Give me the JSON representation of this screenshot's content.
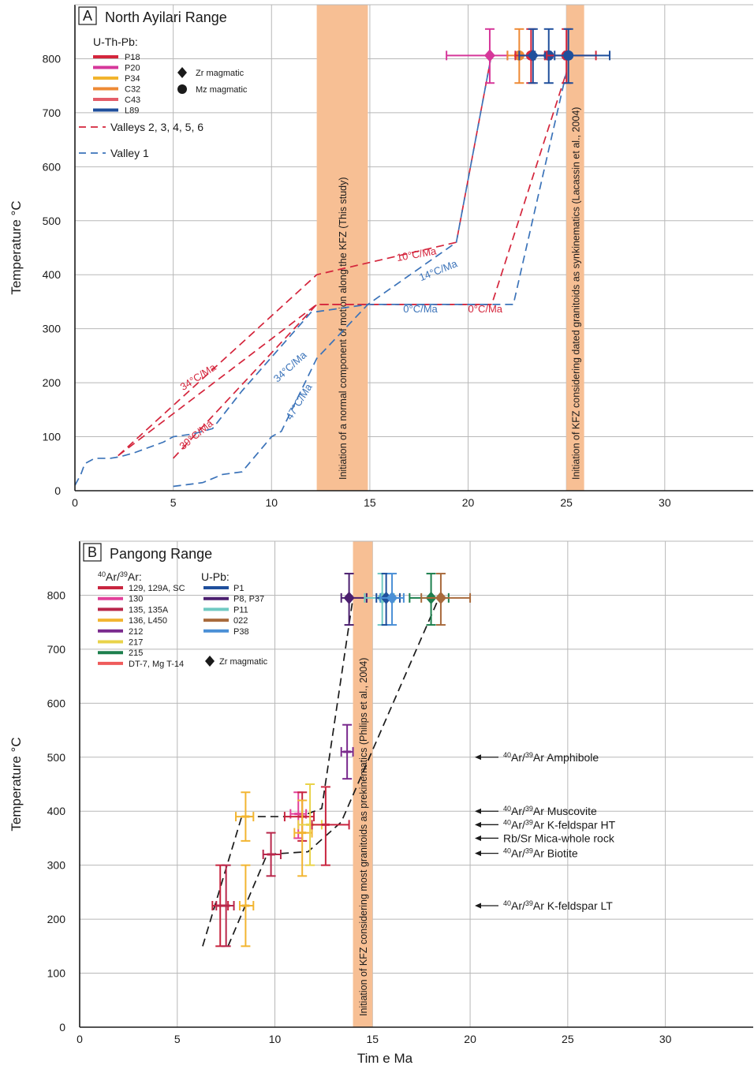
{
  "colors": {
    "frame": "#1a1a1a",
    "grid": "#b8b8b8",
    "band": "#f7bf94",
    "red_dash": "#d4253c",
    "blue_dash": "#3b73b9",
    "black_dash": "#1a1a1a",
    "arrow": "#1a1a1a"
  },
  "chart_data": [
    {
      "type": "line",
      "panel_letter": "A",
      "title": "North Ayilari Range",
      "ylabel": "Temperature °C",
      "xlabel": "",
      "xlim": [
        0,
        34.5
      ],
      "ylim": [
        0,
        900
      ],
      "xticks": [
        0,
        5,
        10,
        15,
        20,
        25,
        30
      ],
      "yticks": [
        0,
        100,
        200,
        300,
        400,
        500,
        600,
        700,
        800
      ],
      "grid": true,
      "legend_position": "top-left",
      "legend_heading": "U-Th-Pb:",
      "legend_samples": [
        {
          "label": "P18",
          "color": "#d4253c"
        },
        {
          "label": "P20",
          "color": "#d6379a"
        },
        {
          "label": "P34",
          "color": "#f2b42e"
        },
        {
          "label": "C32",
          "color": "#ee8a35"
        },
        {
          "label": "C43",
          "color": "#e45d69"
        },
        {
          "label": "L89",
          "color": "#1f4f9c"
        }
      ],
      "legend_markers": [
        {
          "label": "Zr magmatic",
          "shape": "diamond"
        },
        {
          "label": "Mz magmatic",
          "shape": "circle"
        }
      ],
      "legend_lines": [
        {
          "label": "Valleys 2, 3, 4, 5, 6",
          "color": "#d4253c"
        },
        {
          "label": "Valley 1",
          "color": "#3b73b9"
        }
      ],
      "bands": [
        {
          "x0": 12.3,
          "x1": 14.9,
          "label": "Initiation of a normal component of motion along the KFZ (This study)"
        },
        {
          "x0": 25.0,
          "x1": 25.9,
          "label": "Initiation of KFZ considering dated granitoids as synkinematics (Lacassin et al., 2004)"
        }
      ],
      "series": [
        {
          "name": "Valleys 2, 3, 4, 5, 6",
          "style": "red_dash",
          "x": [
            2.2,
            12.3,
            21.2,
            25.0
          ],
          "y": [
            65,
            345,
            345,
            775
          ]
        },
        {
          "name": "Valleys 2, 3, 4, 5, 6",
          "style": "red_dash",
          "x": [
            2.2,
            12.3,
            19.4,
            21.2
          ],
          "y": [
            65,
            400,
            460,
            810
          ]
        },
        {
          "name": "Valleys 2, 3, 4, 5, 6",
          "style": "red_dash",
          "x": [
            5.0,
            12.3,
            14.9,
            21.2
          ],
          "y": [
            60,
            345,
            345,
            345
          ]
        },
        {
          "name": "Valley 1",
          "style": "blue_dash",
          "x": [
            0.0,
            0.3,
            0.5,
            1.0,
            1.8,
            2.3,
            3.0,
            4.5,
            5.0,
            6.0,
            7.0,
            8.5,
            12.0,
            14.9,
            22.3,
            25.0
          ],
          "y": [
            10,
            30,
            50,
            60,
            60,
            63,
            70,
            90,
            100,
            105,
            115,
            185,
            330,
            345,
            345,
            775
          ]
        },
        {
          "name": "Valley 1",
          "style": "blue_dash",
          "x": [
            5.0,
            6.5,
            7.5,
            8.5,
            10.0,
            10.5,
            12.3,
            14.9,
            19.4,
            21.2
          ],
          "y": [
            8,
            15,
            30,
            35,
            100,
            110,
            245,
            345,
            460,
            810
          ]
        }
      ],
      "points": [
        {
          "x": 21.1,
          "y": 806,
          "xerr": [
            18.9,
            22.0
          ],
          "yerr": [
            755,
            855
          ],
          "color": "#d6379a",
          "shape": "diamond"
        },
        {
          "x": 22.6,
          "y": 806,
          "xerr": [
            22.0,
            23.2
          ],
          "yerr": [
            755,
            855
          ],
          "color": "#ee8a35",
          "shape": "circle"
        },
        {
          "x": 23.2,
          "y": 806,
          "xerr": [
            22.4,
            23.9
          ],
          "yerr": [
            755,
            855
          ],
          "color": "#d4253c",
          "shape": "circle"
        },
        {
          "x": 23.3,
          "y": 806,
          "xerr": [
            22.6,
            24.2
          ],
          "yerr": [
            755,
            855
          ],
          "color": "#1f4f9c",
          "shape": "diamond"
        },
        {
          "x": 24.1,
          "y": 806,
          "xerr": [
            23.4,
            24.9
          ],
          "yerr": [
            755,
            855
          ],
          "color": "#1f4f9c",
          "shape": "circle"
        },
        {
          "x": 25.0,
          "y": 806,
          "xerr": [
            24.0,
            26.5
          ],
          "yerr": [
            755,
            855
          ],
          "color": "#d4253c",
          "shape": "circle"
        },
        {
          "x": 25.1,
          "y": 806,
          "xerr": [
            24.4,
            27.2
          ],
          "yerr": [
            755,
            855
          ],
          "color": "#1f4f9c",
          "shape": "circle"
        }
      ],
      "annotations": [
        {
          "text": "10°C/Ma",
          "x": 16.4,
          "y": 425,
          "angle": -10,
          "color": "#d4253c"
        },
        {
          "text": "14°C/Ma",
          "x": 17.6,
          "y": 388,
          "angle": -22,
          "color": "#3b73b9"
        },
        {
          "text": "0°C/Ma",
          "x": 16.7,
          "y": 330,
          "angle": 0,
          "color": "#3b73b9"
        },
        {
          "text": "0°C/Ma",
          "x": 20.0,
          "y": 330,
          "angle": 0,
          "color": "#d4253c"
        },
        {
          "text": "34°C/Ma",
          "x": 5.5,
          "y": 185,
          "angle": -33,
          "color": "#d4253c"
        },
        {
          "text": "34°C/Ma",
          "x": 10.3,
          "y": 200,
          "angle": -42,
          "color": "#3b73b9"
        },
        {
          "text": "39°C/Ma",
          "x": 5.5,
          "y": 75,
          "angle": -40,
          "color": "#d4253c"
        },
        {
          "text": "47°C/Ma",
          "x": 11.0,
          "y": 130,
          "angle": -58,
          "color": "#3b73b9"
        }
      ]
    },
    {
      "type": "line",
      "panel_letter": "B",
      "title": "Pangong Range",
      "ylabel": "Temperature °C",
      "xlabel": "Tim e Ma",
      "xlim": [
        0,
        34.5
      ],
      "ylim": [
        0,
        900
      ],
      "xticks": [
        0,
        5,
        10,
        15,
        20,
        25,
        30
      ],
      "yticks": [
        0,
        100,
        200,
        300,
        400,
        500,
        600,
        700,
        800
      ],
      "grid": true,
      "legend_position": "top-left",
      "legend_heading_arar": "40Ar/39Ar:",
      "legend_arar": [
        {
          "label": "129, 129A, SC",
          "color": "#c8253f"
        },
        {
          "label": "130",
          "color": "#e2409a"
        },
        {
          "label": "135, 135A",
          "color": "#b8264a"
        },
        {
          "label": "136, L450",
          "color": "#f2b531"
        },
        {
          "label": "212",
          "color": "#7a2a8d"
        },
        {
          "label": "217",
          "color": "#e9d34a"
        },
        {
          "label": "215",
          "color": "#1c7f4d"
        },
        {
          "label": "DT-7, Mg T-14",
          "color": "#ef5b5b"
        }
      ],
      "legend_heading_upb": "U-Pb:",
      "legend_upb": [
        {
          "label": "P1",
          "color": "#1f4f9c"
        },
        {
          "label": "P8, P37",
          "color": "#4b1f6f"
        },
        {
          "label": "P11",
          "color": "#6fc9c2"
        },
        {
          "label": "022",
          "color": "#a86a3c"
        },
        {
          "label": "P38",
          "color": "#4a8fd6"
        }
      ],
      "legend_markers": [
        {
          "label": "Zr magmatic",
          "shape": "diamond"
        }
      ],
      "bands": [
        {
          "x0": 14.0,
          "x1": 15.0,
          "label": "Initiation of KFZ considering most granitoids as prekinematics (Philips et al., 2004)"
        }
      ],
      "series": [
        {
          "style": "black_dash",
          "x": [
            6.3,
            8.3,
            11.3,
            12.4,
            14.0
          ],
          "y": [
            150,
            390,
            390,
            405,
            795
          ]
        },
        {
          "style": "black_dash",
          "x": [
            7.6,
            9.6,
            11.7,
            13.4,
            18.4
          ],
          "y": [
            150,
            320,
            325,
            380,
            795
          ]
        }
      ],
      "points": [
        {
          "x": 13.8,
          "y": 795,
          "xerr": [
            13.4,
            14.7
          ],
          "yerr": [
            745,
            840
          ],
          "color": "#4b1f6f",
          "shape": "diamond"
        },
        {
          "x": 15.5,
          "y": 795,
          "xerr": [
            14.6,
            16.1
          ],
          "yerr": [
            745,
            840
          ],
          "color": "#6fc9c2",
          "shape": "diamond"
        },
        {
          "x": 15.7,
          "y": 795,
          "xerr": [
            15.2,
            16.4
          ],
          "yerr": [
            745,
            840
          ],
          "color": "#1f4f9c",
          "shape": "diamond"
        },
        {
          "x": 16.0,
          "y": 795,
          "xerr": [
            15.4,
            16.6
          ],
          "yerr": [
            745,
            840
          ],
          "color": "#4a8fd6",
          "shape": "diamond"
        },
        {
          "x": 18.0,
          "y": 795,
          "xerr": [
            16.9,
            18.9
          ],
          "yerr": [
            745,
            840
          ],
          "color": "#1c7f4d",
          "shape": "diamond"
        },
        {
          "x": 18.5,
          "y": 795,
          "xerr": [
            17.5,
            20.0
          ],
          "yerr": [
            745,
            840
          ],
          "color": "#a86a3c",
          "shape": "diamond"
        },
        {
          "x": 13.7,
          "y": 510,
          "xerr": [
            13.4,
            14.0
          ],
          "yerr": [
            460,
            560
          ],
          "color": "#7a2a8d",
          "shape": "none"
        },
        {
          "x": 11.2,
          "y": 395,
          "xerr": [
            10.8,
            11.6
          ],
          "yerr": [
            350,
            435
          ],
          "color": "#e2409a",
          "shape": "none"
        },
        {
          "x": 11.4,
          "y": 390,
          "xerr": [
            10.5,
            12.0
          ],
          "yerr": [
            345,
            435
          ],
          "color": "#c8253f",
          "shape": "none"
        },
        {
          "x": 11.4,
          "y": 360,
          "xerr": [
            11.0,
            11.9
          ],
          "yerr": [
            280,
            420
          ],
          "color": "#f2b531",
          "shape": "none"
        },
        {
          "x": 11.8,
          "y": 375,
          "xerr": [
            11.2,
            12.4
          ],
          "yerr": [
            300,
            450
          ],
          "color": "#e9d34a",
          "shape": "none"
        },
        {
          "x": 12.6,
          "y": 375,
          "xerr": [
            11.9,
            13.8
          ],
          "yerr": [
            300,
            445
          ],
          "color": "#c8253f",
          "shape": "none"
        },
        {
          "x": 9.8,
          "y": 320,
          "xerr": [
            9.4,
            10.3
          ],
          "yerr": [
            280,
            360
          ],
          "color": "#b8264a",
          "shape": "none"
        },
        {
          "x": 8.5,
          "y": 390,
          "xerr": [
            8.0,
            8.9
          ],
          "yerr": [
            345,
            435
          ],
          "color": "#f2b531",
          "shape": "none"
        },
        {
          "x": 8.5,
          "y": 225,
          "xerr": [
            8.2,
            8.9
          ],
          "yerr": [
            150,
            300
          ],
          "color": "#f2b531",
          "shape": "none"
        },
        {
          "x": 7.2,
          "y": 225,
          "xerr": [
            6.8,
            7.6
          ],
          "yerr": [
            150,
            300
          ],
          "color": "#c8253f",
          "shape": "none"
        },
        {
          "x": 7.5,
          "y": 225,
          "xerr": [
            7.0,
            7.9
          ],
          "yerr": [
            150,
            300
          ],
          "color": "#b8264a",
          "shape": "none"
        }
      ],
      "annotations": [
        {
          "y": 500,
          "sup1": "40",
          "base1": "Ar/",
          "sup2": "39",
          "text": "Ar Amphibole"
        },
        {
          "y": 400,
          "sup1": "40",
          "base1": "Ar/",
          "sup2": "39",
          "text": "Ar Muscovite"
        },
        {
          "y": 375,
          "sup1": "40",
          "base1": "Ar/",
          "sup2": "39",
          "text": "Ar K-feldspar HT"
        },
        {
          "y": 350,
          "sup1": "",
          "base1": "",
          "sup2": "",
          "text": "Rb/Sr Mica-whole rock"
        },
        {
          "y": 322,
          "sup1": "40",
          "base1": "Ar/",
          "sup2": "39",
          "text": "Ar Biotite"
        },
        {
          "y": 225,
          "sup1": "40",
          "base1": "Ar/",
          "sup2": "39",
          "text": "Ar K-feldspar LT"
        }
      ]
    }
  ]
}
